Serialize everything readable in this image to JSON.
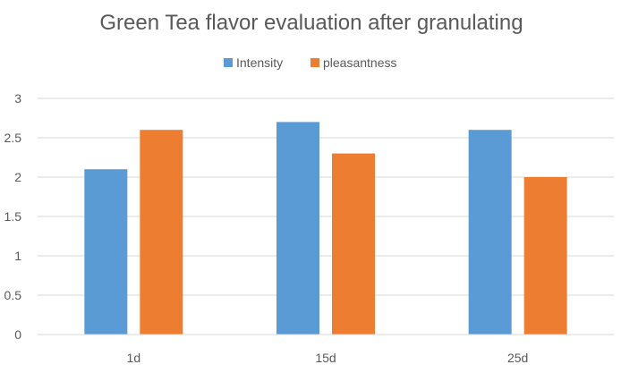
{
  "chart_data": {
    "type": "bar",
    "title": "Green Tea flavor evaluation after granulating",
    "xlabel": "",
    "ylabel": "",
    "categories": [
      "1d",
      "15d",
      "25d"
    ],
    "series": [
      {
        "name": "Intensity",
        "color": "#5B9BD5",
        "values": [
          2.1,
          2.7,
          2.6
        ]
      },
      {
        "name": "pleasantness",
        "color": "#ED7D31",
        "values": [
          2.6,
          2.3,
          2.0
        ]
      }
    ],
    "ylim": [
      0,
      3
    ],
    "yticks": [
      "0",
      "0.5",
      "1",
      "1.5",
      "2",
      "2.5",
      "3"
    ],
    "grid": true,
    "legend_position": "top"
  }
}
